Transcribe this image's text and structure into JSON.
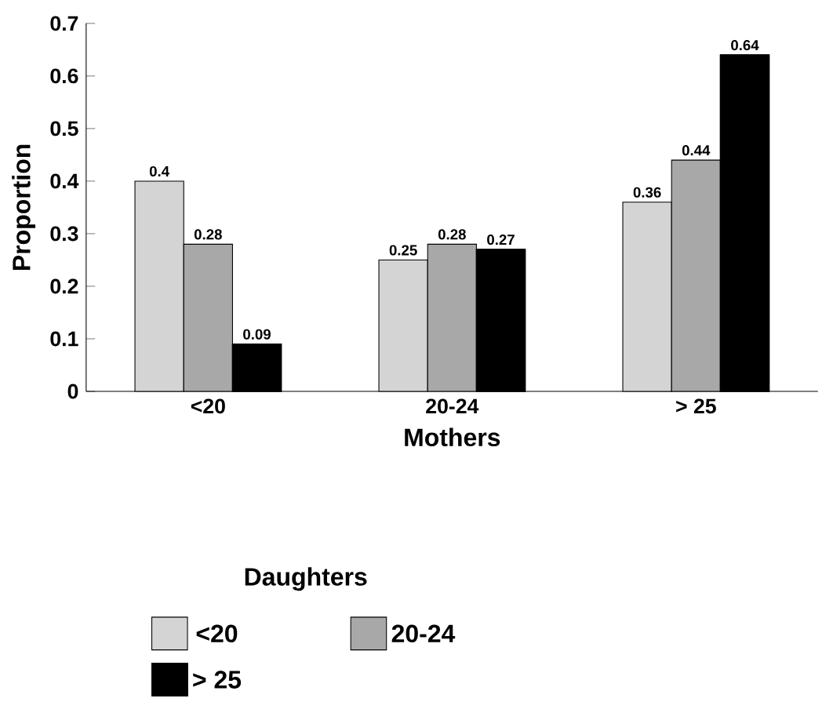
{
  "chart_data": {
    "type": "bar",
    "xlabel": "Mothers",
    "ylabel": "Proportion",
    "legend_title": "Daughters",
    "categories": [
      "<20",
      "20-24",
      "> 25"
    ],
    "series": [
      {
        "name": "<20",
        "color": "#d4d4d4",
        "values": [
          0.4,
          0.25,
          0.36
        ]
      },
      {
        "name": "20-24",
        "color": "#a8a8a8",
        "values": [
          0.28,
          0.28,
          0.44
        ]
      },
      {
        "name": "> 25",
        "color": "#000000",
        "values": [
          0.09,
          0.27,
          0.64
        ]
      }
    ],
    "ylim": [
      0,
      0.7
    ],
    "yticks": [
      0,
      0.1,
      0.2,
      0.3,
      0.4,
      0.5,
      0.6,
      0.7
    ],
    "data_labels": true,
    "legend": "bottom",
    "grid": false
  }
}
